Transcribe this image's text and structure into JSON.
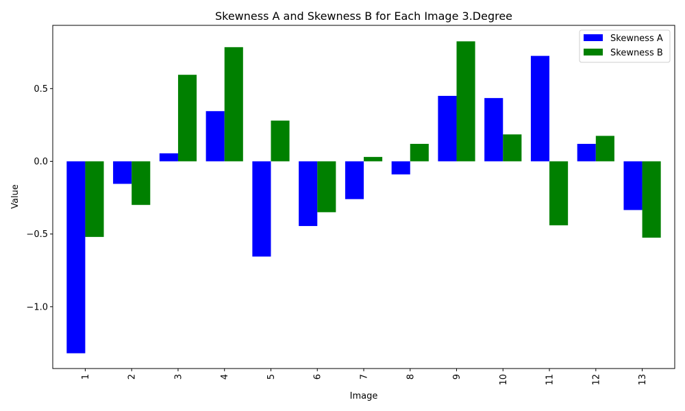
{
  "chart_data": {
    "type": "bar",
    "title": "Skewness A and Skewness B for Each Image 3.Degree",
    "xlabel": "Image",
    "ylabel": "Value",
    "categories": [
      "1",
      "2",
      "3",
      "4",
      "5",
      "6",
      "7",
      "8",
      "9",
      "10",
      "11",
      "12",
      "13"
    ],
    "series": [
      {
        "name": "Skewness A",
        "color": "#0000ff",
        "values": [
          -1.32,
          -0.155,
          0.055,
          0.345,
          -0.655,
          -0.445,
          -0.26,
          -0.09,
          0.45,
          0.435,
          0.725,
          0.12,
          -0.335
        ]
      },
      {
        "name": "Skewness B",
        "color": "#008000",
        "values": [
          -0.52,
          -0.3,
          0.595,
          0.785,
          0.28,
          -0.35,
          0.03,
          0.12,
          0.825,
          0.185,
          -0.44,
          0.175,
          -0.525
        ]
      }
    ],
    "ylim": [
      -1.425,
      0.935
    ],
    "yticks": [
      -1.0,
      -0.5,
      0.0,
      0.5
    ],
    "ytick_labels": [
      "−1.0",
      "−0.5",
      "0.0",
      "0.5"
    ],
    "xtick_rotation": "vertical",
    "legend_position": "upper-right",
    "grid": false
  }
}
